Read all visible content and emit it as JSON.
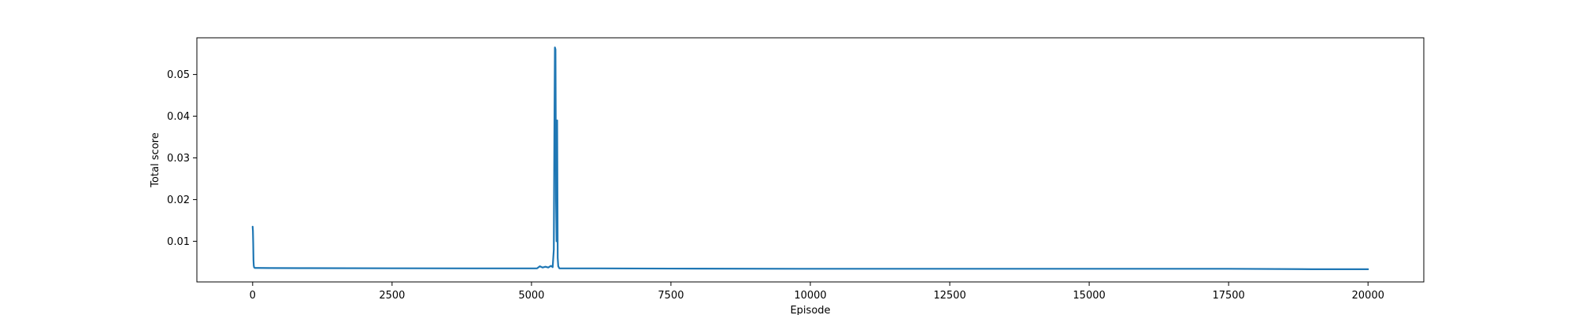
{
  "chart_data": {
    "type": "line",
    "title": "",
    "xlabel": "Episode",
    "ylabel": "Total score",
    "xlim": [
      -1000,
      21000
    ],
    "ylim": [
      0.00025,
      0.0588
    ],
    "xticks": [
      0,
      2500,
      5000,
      7500,
      10000,
      12500,
      15000,
      17500,
      20000
    ],
    "xtick_labels": [
      "0",
      "2500",
      "5000",
      "7500",
      "10000",
      "12500",
      "15000",
      "17500",
      "20000"
    ],
    "yticks": [
      0.01,
      0.02,
      0.03,
      0.04,
      0.05
    ],
    "ytick_labels": [
      "0.01",
      "0.02",
      "0.03",
      "0.04",
      "0.05"
    ],
    "grid": false,
    "legend": "none",
    "series": [
      {
        "color": "#1f77b4",
        "x": [
          0,
          5,
          10,
          15,
          20,
          25,
          30,
          40,
          60,
          100,
          300,
          1000,
          2500,
          4000,
          5000,
          5100,
          5150,
          5200,
          5250,
          5300,
          5350,
          5380,
          5400,
          5410,
          5420,
          5430,
          5440,
          5450,
          5460,
          5470,
          5480,
          5500,
          5600,
          6000,
          7500,
          10000,
          12500,
          15000,
          17500,
          19000,
          20000
        ],
        "y": [
          0.0135,
          0.0125,
          0.0095,
          0.0055,
          0.0042,
          0.0038,
          0.0037,
          0.0036,
          0.0036,
          0.0036,
          0.00358,
          0.00355,
          0.00352,
          0.0035,
          0.0035,
          0.0035,
          0.004,
          0.0037,
          0.0039,
          0.0037,
          0.0041,
          0.0038,
          0.008,
          0.035,
          0.0565,
          0.056,
          0.02,
          0.01,
          0.039,
          0.006,
          0.004,
          0.0035,
          0.0035,
          0.0035,
          0.00345,
          0.0034,
          0.0034,
          0.0034,
          0.0034,
          0.0033,
          0.0033
        ]
      }
    ]
  }
}
